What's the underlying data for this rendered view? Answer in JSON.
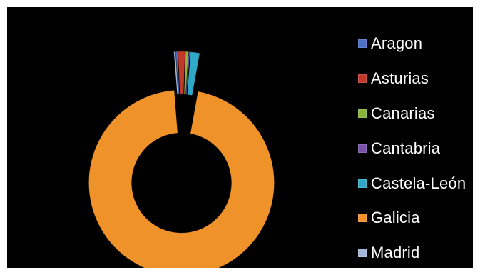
{
  "chart_data": {
    "type": "pie",
    "variant": "donut-exploded",
    "title": "",
    "categories": [
      "Aragon",
      "Asturias",
      "Canarias",
      "Cantabria",
      "Castela-León",
      "Galicia",
      "Madrid"
    ],
    "values": [
      0.3,
      1.2,
      0.5,
      0.2,
      1.6,
      95.9,
      0.3
    ],
    "unit": "%",
    "colors": [
      "#4a6fc4",
      "#c0392b",
      "#8ab53a",
      "#7b52a8",
      "#2fa8c8",
      "#f0922a",
      "#a4b6da"
    ],
    "legend": "right",
    "background": "#000000"
  },
  "legend": {
    "items": [
      "Aragon",
      "Asturias",
      "Canarias",
      "Cantabria",
      "Castela-León",
      "Galicia",
      "Madrid"
    ]
  }
}
